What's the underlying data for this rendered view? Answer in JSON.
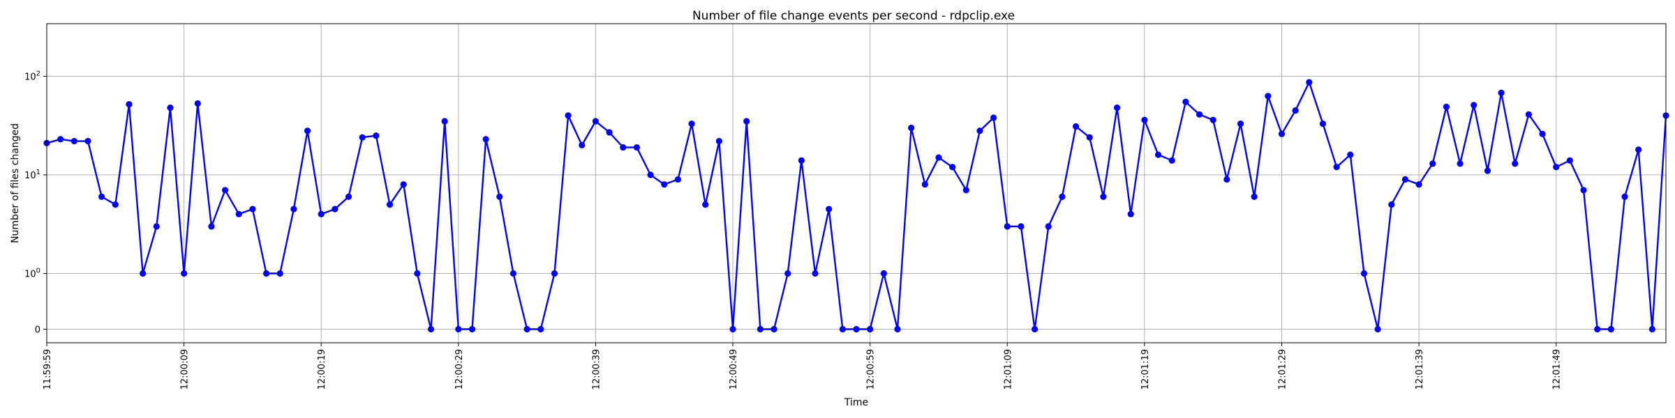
{
  "chart_data": {
    "type": "line",
    "title": "Number of file change events per second - rdpclip.exe",
    "xlabel": "Time",
    "ylabel": "Number of files changed",
    "y_scale": "symlog",
    "y_ticks": [
      "0",
      "10^0",
      "10^1",
      "10^2"
    ],
    "x_tick_labels": [
      "11:59:59",
      "12:00:09",
      "12:00:19",
      "12:00:29",
      "12:00:39",
      "12:00:49",
      "12:00:59",
      "12:01:09",
      "12:01:19",
      "12:01:29",
      "12:01:39",
      "12:01:49"
    ],
    "grid": true,
    "line_color": "#0000ff",
    "x_start": "11:59:59",
    "x_step_seconds": 1,
    "series": [
      {
        "values": [
          21,
          23,
          22,
          22,
          6,
          5,
          52,
          1,
          3,
          48,
          1,
          53,
          3,
          7,
          4,
          4.5,
          1,
          1,
          4.5,
          28,
          4,
          4.5,
          6,
          24,
          25,
          5,
          8,
          1,
          0,
          35,
          0,
          0,
          23,
          6,
          1,
          0,
          0,
          1,
          40,
          20,
          35,
          27,
          19,
          19,
          10,
          8,
          9,
          33,
          5,
          22,
          0,
          35,
          0,
          0,
          1,
          14,
          1,
          4.5,
          0,
          0,
          0,
          1,
          0,
          30,
          8,
          15,
          12,
          7,
          28,
          38,
          3,
          3,
          0,
          3,
          6,
          31,
          24,
          6,
          48,
          4,
          36,
          16,
          14,
          55,
          41,
          36,
          9,
          33,
          6,
          63,
          26,
          45,
          87,
          33,
          12,
          16,
          1,
          0,
          5,
          9,
          8,
          13,
          49,
          13,
          51,
          11,
          68,
          13,
          41,
          26,
          12,
          14,
          7,
          0,
          0,
          6,
          18,
          0,
          40
        ]
      }
    ]
  }
}
